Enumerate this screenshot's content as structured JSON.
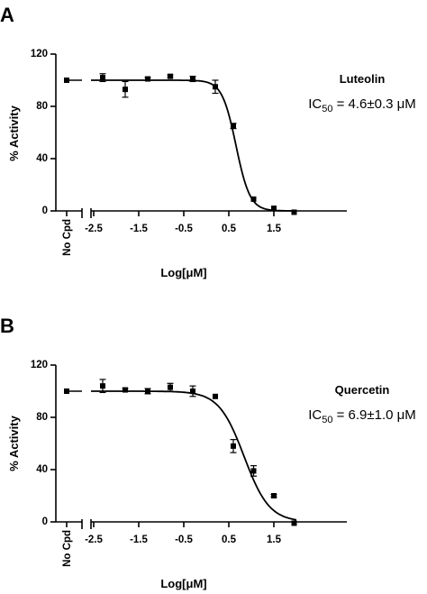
{
  "chart_data": [
    {
      "type": "scatter",
      "panel_label": "A",
      "compound": "Luteolin",
      "ic50_prefix": "IC",
      "ic50_sub": "50",
      "ic50_value": " = 4.6±0.3 μM",
      "xlabel": "Log[μM]",
      "ylabel": "% Activity",
      "control_label": "No Cpd",
      "xlim": [
        -2.8,
        2.0
      ],
      "ylim": [
        0,
        120
      ],
      "x_ticks": [
        -2.5,
        -1.5,
        -0.5,
        0.5,
        1.5
      ],
      "x_tick_labels": [
        "-2.5",
        "-1.5",
        "-0.5",
        "0.5",
        "1.5"
      ],
      "y_ticks": [
        0,
        40,
        80,
        120
      ],
      "y_tick_labels": [
        "0",
        "40",
        "80",
        "120"
      ],
      "control_point": {
        "y": 100,
        "err": 0
      },
      "points": [
        {
          "x": -2.3,
          "y": 102,
          "err": 3
        },
        {
          "x": -1.8,
          "y": 93,
          "err": 6
        },
        {
          "x": -1.3,
          "y": 101,
          "err": 1
        },
        {
          "x": -0.8,
          "y": 103,
          "err": 1
        },
        {
          "x": -0.3,
          "y": 101,
          "err": 2
        },
        {
          "x": 0.2,
          "y": 95,
          "err": 5
        },
        {
          "x": 0.6,
          "y": 65,
          "err": 2
        },
        {
          "x": 1.05,
          "y": 9,
          "err": 0
        },
        {
          "x": 1.5,
          "y": 2,
          "err": 0
        },
        {
          "x": 1.95,
          "y": -1,
          "err": 0
        }
      ],
      "fit": {
        "top": 100,
        "bottom": 0,
        "log_ic50": 0.66,
        "hill": 2.8
      }
    },
    {
      "type": "scatter",
      "panel_label": "B",
      "compound": "Quercetin",
      "ic50_prefix": "IC",
      "ic50_sub": "50",
      "ic50_value": " = 6.9±1.0 μM",
      "xlabel": "Log[μM]",
      "ylabel": "% Activity",
      "control_label": "No Cpd",
      "xlim": [
        -2.8,
        2.0
      ],
      "ylim": [
        0,
        120
      ],
      "x_ticks": [
        -2.5,
        -1.5,
        -0.5,
        0.5,
        1.5
      ],
      "x_tick_labels": [
        "-2.5",
        "-1.5",
        "-0.5",
        "0.5",
        "1.5"
      ],
      "y_ticks": [
        0,
        40,
        80,
        120
      ],
      "y_tick_labels": [
        "0",
        "40",
        "80",
        "120"
      ],
      "control_point": {
        "y": 100,
        "err": 0
      },
      "points": [
        {
          "x": -2.3,
          "y": 104,
          "err": 5
        },
        {
          "x": -1.8,
          "y": 101,
          "err": 1
        },
        {
          "x": -1.3,
          "y": 100,
          "err": 2
        },
        {
          "x": -0.8,
          "y": 103,
          "err": 3
        },
        {
          "x": -0.3,
          "y": 100,
          "err": 4
        },
        {
          "x": 0.2,
          "y": 96,
          "err": 0
        },
        {
          "x": 0.6,
          "y": 58,
          "err": 5
        },
        {
          "x": 1.05,
          "y": 39,
          "err": 4
        },
        {
          "x": 1.5,
          "y": 20,
          "err": 1
        },
        {
          "x": 1.95,
          "y": -1,
          "err": 0
        }
      ],
      "fit": {
        "top": 100,
        "bottom": 0,
        "log_ic50": 0.84,
        "hill": 1.55
      }
    }
  ]
}
